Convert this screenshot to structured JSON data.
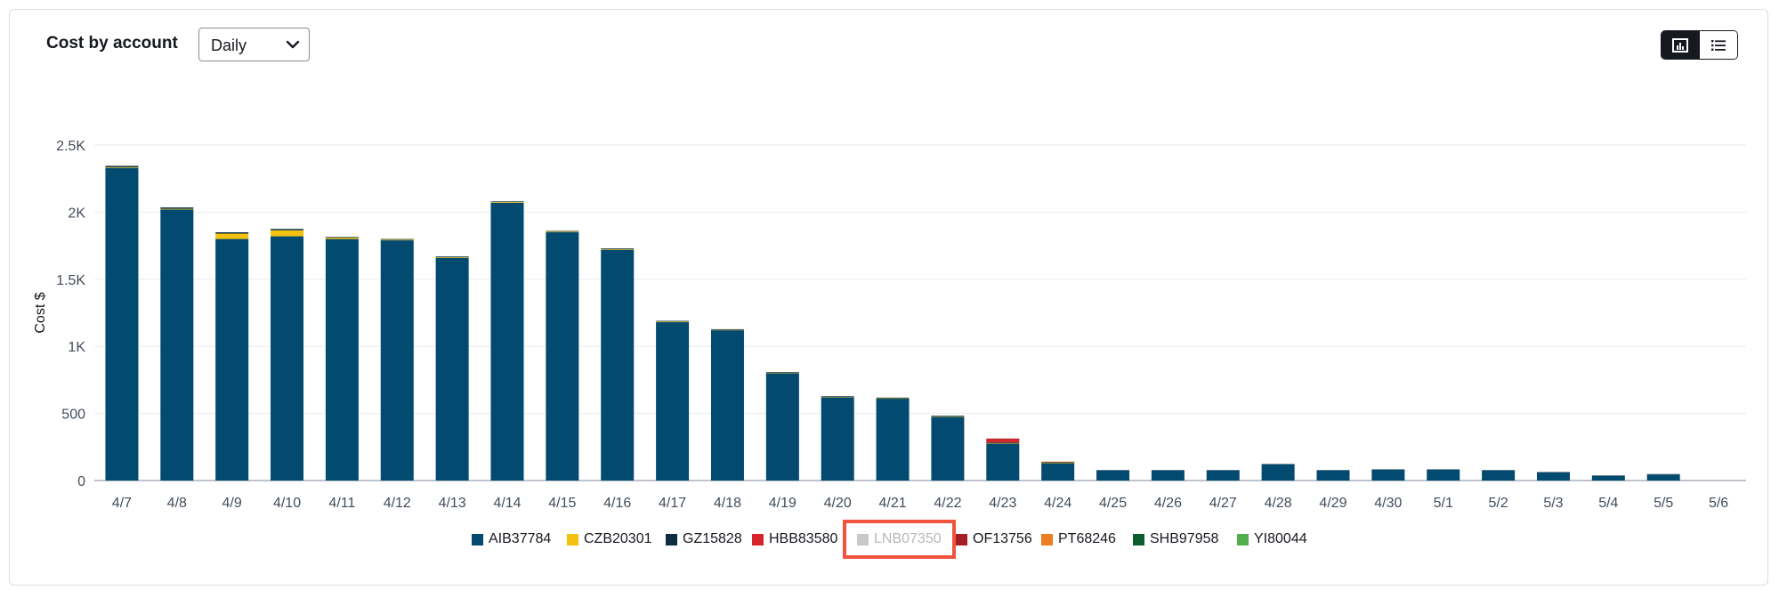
{
  "header": {
    "title": "Cost by account",
    "period_select": {
      "value": "Daily"
    },
    "view_toggle": {
      "active": "chart-view",
      "icons": [
        "bar-chart-icon",
        "list-icon"
      ]
    }
  },
  "colors": {
    "AIB37784": "#024a70",
    "CZB20301": "#f2c20f",
    "GZ15828": "#0c2e40",
    "HBB83580": "#d4242c",
    "LNB07350": "#c8c8c8",
    "OF13756": "#a71d24",
    "PT68246": "#ec7d22",
    "SHB97958": "#0d5c2e",
    "YI80044": "#51ae4a"
  },
  "chart_data": {
    "type": "bar",
    "stacked": true,
    "ylabel": "Cost $",
    "xlabel": "",
    "ylim": [
      0,
      2500
    ],
    "yticks": [
      0,
      500,
      1000,
      1500,
      2000,
      2500
    ],
    "ytick_labels": [
      "0",
      "500",
      "1K",
      "1.5K",
      "2K",
      "2.5K"
    ],
    "grid": true,
    "legend_position": "bottom",
    "categories": [
      "4/7",
      "4/8",
      "4/9",
      "4/10",
      "4/11",
      "4/12",
      "4/13",
      "4/14",
      "4/15",
      "4/16",
      "4/17",
      "4/18",
      "4/19",
      "4/20",
      "4/21",
      "4/22",
      "4/23",
      "4/24",
      "4/25",
      "4/26",
      "4/27",
      "4/28",
      "4/29",
      "4/30",
      "5/1",
      "5/2",
      "5/3",
      "5/4",
      "5/5",
      "5/6"
    ],
    "series": [
      {
        "name": "AIB37784",
        "values": [
          2330,
          2020,
          1800,
          1820,
          1800,
          1790,
          1660,
          2070,
          1850,
          1720,
          1180,
          1120,
          800,
          620,
          610,
          475,
          275,
          130,
          75,
          75,
          75,
          120,
          75,
          80,
          80,
          75,
          60,
          35,
          45,
          0
        ]
      },
      {
        "name": "CZB20301",
        "values": [
          5,
          5,
          40,
          45,
          10,
          5,
          5,
          5,
          5,
          5,
          5,
          3,
          3,
          3,
          3,
          3,
          3,
          3,
          0,
          0,
          0,
          0,
          0,
          0,
          0,
          0,
          0,
          0,
          0,
          0
        ]
      },
      {
        "name": "GZ15828",
        "values": [
          10,
          10,
          10,
          10,
          5,
          5,
          5,
          5,
          5,
          5,
          5,
          5,
          5,
          5,
          5,
          5,
          5,
          3,
          3,
          3,
          3,
          3,
          3,
          3,
          3,
          3,
          3,
          3,
          3,
          0
        ]
      },
      {
        "name": "HBB83580",
        "values": [
          0,
          0,
          0,
          0,
          0,
          0,
          0,
          0,
          0,
          0,
          0,
          0,
          0,
          0,
          0,
          0,
          25,
          0,
          0,
          0,
          0,
          0,
          0,
          0,
          0,
          0,
          0,
          0,
          0,
          0
        ]
      },
      {
        "name": "LNB07350",
        "values": [
          0,
          0,
          0,
          0,
          0,
          0,
          0,
          0,
          0,
          0,
          0,
          0,
          0,
          0,
          0,
          0,
          0,
          0,
          0,
          0,
          0,
          0,
          0,
          0,
          0,
          0,
          0,
          0,
          0,
          0
        ],
        "hidden": true
      },
      {
        "name": "OF13756",
        "values": [
          0,
          0,
          0,
          0,
          0,
          0,
          0,
          0,
          0,
          0,
          0,
          0,
          0,
          0,
          0,
          0,
          5,
          0,
          0,
          0,
          0,
          0,
          0,
          0,
          0,
          0,
          0,
          0,
          0,
          0
        ]
      },
      {
        "name": "PT68246",
        "values": [
          0,
          0,
          0,
          0,
          0,
          0,
          0,
          0,
          0,
          0,
          0,
          0,
          0,
          0,
          0,
          0,
          0,
          5,
          0,
          0,
          0,
          0,
          0,
          0,
          0,
          0,
          0,
          0,
          0,
          0
        ]
      },
      {
        "name": "SHB97958",
        "values": [
          0,
          0,
          0,
          0,
          0,
          0,
          0,
          0,
          0,
          0,
          0,
          0,
          0,
          0,
          0,
          0,
          0,
          0,
          0,
          0,
          0,
          0,
          0,
          0,
          0,
          0,
          0,
          0,
          0,
          0
        ]
      },
      {
        "name": "YI80044",
        "values": [
          0,
          0,
          0,
          0,
          0,
          0,
          0,
          0,
          0,
          0,
          0,
          0,
          0,
          0,
          0,
          0,
          0,
          0,
          0,
          0,
          0,
          0,
          0,
          0,
          0,
          0,
          0,
          0,
          0,
          0
        ]
      }
    ]
  },
  "legend": {
    "items": [
      {
        "label": "AIB37784",
        "disabled": false,
        "highlighted": false
      },
      {
        "label": "CZB20301",
        "disabled": false,
        "highlighted": false
      },
      {
        "label": "GZ15828",
        "disabled": false,
        "highlighted": false
      },
      {
        "label": "HBB83580",
        "disabled": false,
        "highlighted": false
      },
      {
        "label": "LNB07350",
        "disabled": true,
        "highlighted": true
      },
      {
        "label": "OF13756",
        "disabled": false,
        "highlighted": false
      },
      {
        "label": "PT68246",
        "disabled": false,
        "highlighted": false
      },
      {
        "label": "SHB97958",
        "disabled": false,
        "highlighted": false
      },
      {
        "label": "YI80044",
        "disabled": false,
        "highlighted": false
      }
    ]
  }
}
